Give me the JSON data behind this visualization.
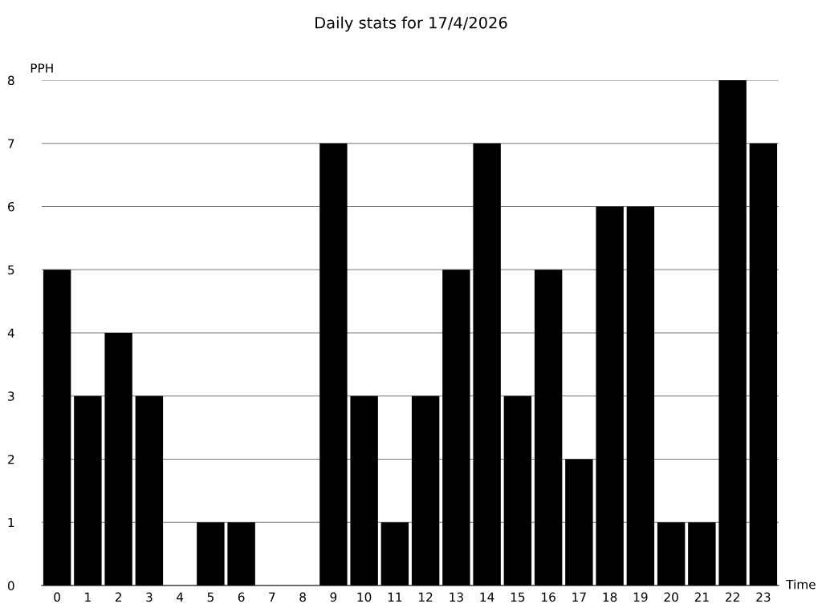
{
  "chart_data": {
    "type": "bar",
    "title": "Daily stats for 17/4/2026",
    "xlabel": "Time",
    "ylabel": "PPH",
    "categories": [
      "0",
      "1",
      "2",
      "3",
      "4",
      "5",
      "6",
      "7",
      "8",
      "9",
      "10",
      "11",
      "12",
      "13",
      "14",
      "15",
      "16",
      "17",
      "18",
      "19",
      "20",
      "21",
      "22",
      "23"
    ],
    "values": [
      5,
      3,
      4,
      3,
      0,
      1,
      1,
      0,
      0,
      7,
      3,
      1,
      3,
      5,
      7,
      3,
      5,
      2,
      6,
      6,
      1,
      1,
      8,
      7
    ],
    "color": "#000000",
    "ylim": [
      0,
      8
    ],
    "yticks": [
      0,
      1,
      2,
      3,
      4,
      5,
      6,
      7,
      8
    ],
    "grid": "y"
  }
}
